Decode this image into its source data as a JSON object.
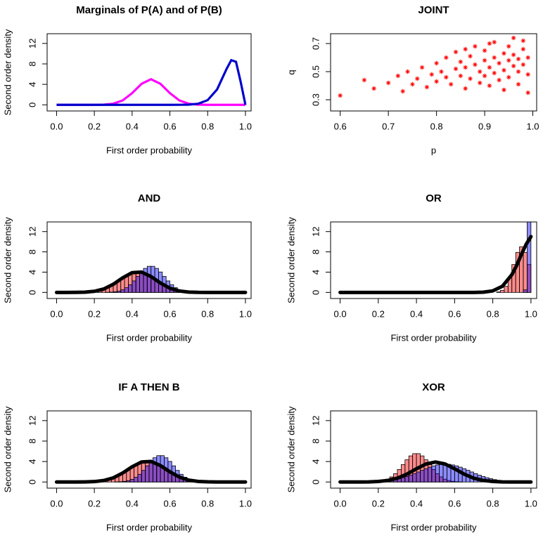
{
  "chart_data": [
    {
      "type": "line",
      "title": "Marginals of P(A) and of P(B)",
      "xlabel": "First order probability",
      "ylabel": "Second order density",
      "xlim": [
        -0.05,
        1.03
      ],
      "ylim": [
        -1.2,
        13.9
      ],
      "xticks": [
        {
          "value": 0,
          "label": "0.0"
        },
        0.2,
        0.4,
        0.6,
        0.8,
        {
          "value": 1,
          "label": "1.0"
        }
      ],
      "yticks": [
        0,
        4,
        8,
        12
      ],
      "x": [
        0,
        0.1,
        0.2,
        0.25,
        0.3,
        0.35,
        0.4,
        0.45,
        0.5,
        0.55,
        0.6,
        0.65,
        0.7,
        0.75,
        0.8,
        0.85,
        0.9,
        0.925,
        0.95,
        0.975,
        1
      ],
      "series": [
        {
          "color": "#ff00ff",
          "values": [
            0,
            0,
            0,
            0.04,
            0.22,
            0.86,
            2.29,
            4.11,
            5,
            4.11,
            2.29,
            0.86,
            0.22,
            0.04,
            0,
            0,
            0,
            0,
            0,
            0,
            0
          ]
        },
        {
          "color": "#0000cd",
          "values": [
            0,
            0,
            0,
            0,
            0,
            0,
            0,
            0,
            0,
            0,
            0,
            0.01,
            0.04,
            0.22,
            0.92,
            3.01,
            7.01,
            8.73,
            8.41,
            4.46,
            0
          ]
        }
      ]
    },
    {
      "type": "scatter",
      "title": "JOINT",
      "xlabel": "p",
      "ylabel": "q",
      "color": "#ff0000",
      "xlim": [
        0.58,
        1.008
      ],
      "ylim": [
        0.22,
        0.77
      ],
      "xticks": [
        0.6,
        0.7,
        0.8,
        0.9,
        {
          "value": 1,
          "label": "1.0"
        }
      ],
      "yticks": [
        0.3,
        0.5,
        0.7
      ],
      "x": [
        0.6,
        0.65,
        0.67,
        0.7,
        0.72,
        0.73,
        0.74,
        0.75,
        0.76,
        0.77,
        0.78,
        0.79,
        0.8,
        0.8,
        0.81,
        0.82,
        0.82,
        0.83,
        0.84,
        0.84,
        0.85,
        0.85,
        0.86,
        0.86,
        0.87,
        0.87,
        0.88,
        0.88,
        0.89,
        0.89,
        0.9,
        0.9,
        0.9,
        0.91,
        0.91,
        0.92,
        0.92,
        0.92,
        0.93,
        0.93,
        0.94,
        0.94,
        0.94,
        0.95,
        0.95,
        0.95,
        0.96,
        0.96,
        0.96,
        0.97,
        0.97,
        0.97,
        0.98,
        0.98,
        0.98,
        0.99,
        0.99,
        0.99,
        0.86,
        0.91
      ],
      "values": [
        0.33,
        0.44,
        0.38,
        0.42,
        0.47,
        0.36,
        0.5,
        0.41,
        0.45,
        0.53,
        0.39,
        0.48,
        0.43,
        0.56,
        0.5,
        0.46,
        0.6,
        0.41,
        0.52,
        0.64,
        0.47,
        0.57,
        0.38,
        0.53,
        0.61,
        0.45,
        0.55,
        0.68,
        0.5,
        0.42,
        0.58,
        0.47,
        0.65,
        0.53,
        0.4,
        0.6,
        0.49,
        0.71,
        0.56,
        0.44,
        0.63,
        0.51,
        0.37,
        0.58,
        0.68,
        0.46,
        0.54,
        0.62,
        0.74,
        0.5,
        0.59,
        0.41,
        0.66,
        0.55,
        0.72,
        0.48,
        0.6,
        0.35,
        0.66,
        0.7
      ]
    },
    {
      "type": "histogram",
      "title": "AND",
      "xlabel": "First order probability",
      "ylabel": "Second order density",
      "alpha": 0.45,
      "xlim": [
        -0.05,
        1.03
      ],
      "ylim": [
        -1.2,
        13.9
      ],
      "xticks": [
        {
          "value": 0,
          "label": "0.0"
        },
        0.2,
        0.4,
        0.6,
        0.8,
        {
          "value": 1,
          "label": "1.0"
        }
      ],
      "yticks": [
        0,
        4,
        8,
        12
      ],
      "bins": [
        0.1,
        0.12,
        0.14,
        0.16,
        0.18,
        0.2,
        0.22,
        0.24,
        0.26,
        0.28,
        0.3,
        0.32,
        0.34,
        0.36,
        0.38,
        0.4,
        0.42,
        0.44,
        0.46,
        0.48,
        0.5,
        0.52,
        0.54,
        0.56,
        0.58,
        0.6,
        0.62,
        0.64,
        0.66,
        0.68,
        0.7,
        0.72,
        0.74,
        0.76,
        0.78,
        0.8
      ],
      "series": [
        {
          "color": "#ff0000",
          "values": [
            0.02,
            0.04,
            0.08,
            0.14,
            0.22,
            0.36,
            0.54,
            0.79,
            1.11,
            1.5,
            1.95,
            2.43,
            2.9,
            3.34,
            3.69,
            3.92,
            4,
            3.92,
            3.69,
            3.34,
            2.9,
            2.43,
            1.95,
            1.5,
            1.11,
            0.79,
            0.54,
            0.36,
            0.22,
            0.14,
            0.08,
            0.04,
            0.02,
            0.01,
            0
          ]
        },
        {
          "color": "#0000ff",
          "values": [
            0,
            0,
            0,
            0,
            0,
            0,
            0,
            0,
            0.02,
            0.06,
            0.13,
            0.27,
            0.52,
            0.93,
            1.51,
            2.27,
            3.16,
            4.03,
            4.74,
            5.15,
            5.15,
            4.74,
            4.03,
            3.16,
            2.27,
            1.51,
            0.93,
            0.52,
            0.27,
            0.13,
            0.06,
            0.02,
            0,
            0,
            0
          ]
        }
      ],
      "density": {
        "color": "#000000",
        "x": [
          0,
          0.05,
          0.1,
          0.15,
          0.2,
          0.25,
          0.3,
          0.35,
          0.4,
          0.45,
          0.5,
          0.55,
          0.6,
          0.65,
          0.7,
          0.75,
          0.8,
          0.85,
          0.9,
          0.95,
          1
        ],
        "values": [
          0,
          0,
          0.01,
          0.05,
          0.22,
          0.68,
          1.6,
          2.88,
          3.9,
          4.01,
          3.13,
          1.85,
          0.83,
          0.28,
          0.07,
          0.01,
          0,
          0,
          0,
          0,
          0
        ]
      }
    },
    {
      "type": "histogram",
      "title": "OR",
      "xlabel": "First order probability",
      "ylabel": "Second order density",
      "alpha": 0.45,
      "xlim": [
        -0.05,
        1.03
      ],
      "ylim": [
        -1.2,
        13.9
      ],
      "xticks": [
        {
          "value": 0,
          "label": "0.0"
        },
        0.2,
        0.4,
        0.6,
        0.8,
        {
          "value": 1,
          "label": "1.0"
        }
      ],
      "yticks": [
        0,
        4,
        8,
        12
      ],
      "bins": [
        0.7,
        0.72,
        0.74,
        0.76,
        0.78,
        0.8,
        0.82,
        0.84,
        0.86,
        0.88,
        0.9,
        0.92,
        0.94,
        0.96,
        0.98,
        1
      ],
      "series": [
        {
          "color": "#ff0000",
          "values": [
            0,
            0,
            0,
            0,
            0,
            0,
            0.1,
            0.4,
            1.2,
            2.9,
            5.5,
            7.9,
            9,
            7.9,
            5.5
          ]
        },
        {
          "color": "#0000ff",
          "values": [
            0,
            0,
            0,
            0,
            0,
            0,
            0,
            0,
            0,
            0,
            0,
            0,
            0,
            0.5,
            15
          ]
        }
      ],
      "density": {
        "color": "#000000",
        "x": [
          0,
          0.1,
          0.2,
          0.3,
          0.4,
          0.5,
          0.6,
          0.7,
          0.75,
          0.8,
          0.85,
          0.9,
          0.925,
          0.95,
          0.975,
          1
        ],
        "values": [
          0,
          0,
          0,
          0,
          0,
          0,
          0,
          0,
          0.05,
          0.3,
          1.2,
          3.5,
          5.3,
          7.5,
          9.5,
          11
        ]
      }
    },
    {
      "type": "histogram",
      "title": "IF A THEN B",
      "xlabel": "First order probability",
      "ylabel": "Second order density",
      "alpha": 0.45,
      "xlim": [
        -0.05,
        1.03
      ],
      "ylim": [
        -1.2,
        13.9
      ],
      "xticks": [
        {
          "value": 0,
          "label": "0.0"
        },
        0.2,
        0.4,
        0.6,
        0.8,
        {
          "value": 1,
          "label": "1.0"
        }
      ],
      "yticks": [
        0,
        4,
        8,
        12
      ],
      "bins": [
        0.15,
        0.17,
        0.19,
        0.21,
        0.23,
        0.25,
        0.27,
        0.29,
        0.31,
        0.33,
        0.35,
        0.37,
        0.39,
        0.41,
        0.43,
        0.45,
        0.47,
        0.49,
        0.51,
        0.53,
        0.55,
        0.57,
        0.59,
        0.61,
        0.63,
        0.65,
        0.67,
        0.69,
        0.71,
        0.73,
        0.75,
        0.77,
        0.79,
        0.81,
        0.83,
        0.85
      ],
      "series": [
        {
          "color": "#ff0000",
          "values": [
            0.02,
            0.04,
            0.08,
            0.14,
            0.22,
            0.36,
            0.54,
            0.79,
            1.11,
            1.5,
            1.95,
            2.43,
            2.9,
            3.34,
            3.69,
            3.92,
            4,
            3.92,
            3.69,
            3.34,
            2.9,
            2.43,
            1.95,
            1.5,
            1.11,
            0.79,
            0.54,
            0.36,
            0.22,
            0.14,
            0.08,
            0.04,
            0.02,
            0.01,
            0
          ]
        },
        {
          "color": "#0000ff",
          "values": [
            0,
            0,
            0,
            0,
            0,
            0,
            0,
            0,
            0.02,
            0.06,
            0.13,
            0.27,
            0.52,
            0.93,
            1.51,
            2.27,
            3.16,
            4.03,
            4.74,
            5.15,
            5.15,
            4.74,
            4.03,
            3.16,
            2.27,
            1.51,
            0.93,
            0.52,
            0.27,
            0.13,
            0.06,
            0.02,
            0,
            0,
            0
          ]
        }
      ],
      "density": {
        "color": "#000000",
        "x": [
          0,
          0.05,
          0.1,
          0.15,
          0.2,
          0.25,
          0.3,
          0.35,
          0.4,
          0.45,
          0.5,
          0.55,
          0.6,
          0.65,
          0.7,
          0.75,
          0.8,
          0.85,
          0.9,
          0.95,
          1
        ],
        "values": [
          0,
          0,
          0,
          0.02,
          0.08,
          0.29,
          0.81,
          1.76,
          2.98,
          3.92,
          4.02,
          3.21,
          1.99,
          0.97,
          0.36,
          0.11,
          0.03,
          0,
          0,
          0,
          0
        ]
      }
    },
    {
      "type": "histogram",
      "title": "XOR",
      "xlabel": "First order probability",
      "ylabel": "Second order density",
      "alpha": 0.45,
      "xlim": [
        -0.05,
        1.03
      ],
      "ylim": [
        -1.2,
        13.9
      ],
      "xticks": [
        {
          "value": 0,
          "label": "0.0"
        },
        0.2,
        0.4,
        0.6,
        0.8,
        {
          "value": 1,
          "label": "1.0"
        }
      ],
      "yticks": [
        0,
        4,
        8,
        12
      ],
      "bins": [
        0.2,
        0.22,
        0.24,
        0.26,
        0.28,
        0.3,
        0.32,
        0.34,
        0.36,
        0.38,
        0.4,
        0.42,
        0.44,
        0.46,
        0.48,
        0.5,
        0.52,
        0.54,
        0.56,
        0.58,
        0.6,
        0.62,
        0.64,
        0.66,
        0.68,
        0.7,
        0.72,
        0.74,
        0.76,
        0.78,
        0.8,
        0.82,
        0.84,
        0.86,
        0.88,
        0.9
      ],
      "series": [
        {
          "color": "#ff0000",
          "values": [
            0.14,
            0.29,
            0.56,
            1,
            1.63,
            2.45,
            3.4,
            4.34,
            5.1,
            5.54,
            5.54,
            5.1,
            4.34,
            3.4,
            2.45,
            1.63,
            1,
            0.56,
            0.29,
            0.14,
            0.06,
            0.02,
            0,
            0,
            0,
            0,
            0,
            0,
            0,
            0,
            0,
            0,
            0,
            0,
            0
          ]
        },
        {
          "color": "#0000ff",
          "values": [
            0.11,
            0.17,
            0.24,
            0.34,
            0.47,
            0.64,
            0.84,
            1.07,
            1.34,
            1.64,
            1.96,
            2.29,
            2.6,
            2.9,
            3.15,
            3.34,
            3.46,
            3.5,
            3.46,
            3.34,
            3.15,
            2.9,
            2.6,
            2.29,
            1.96,
            1.64,
            1.34,
            1.07,
            0.84,
            0.64,
            0.47,
            0.34,
            0.24,
            0.17,
            0.11
          ]
        }
      ],
      "density": {
        "color": "#000000",
        "x": [
          0,
          0.05,
          0.1,
          0.15,
          0.2,
          0.25,
          0.3,
          0.35,
          0.4,
          0.45,
          0.5,
          0.55,
          0.6,
          0.65,
          0.7,
          0.75,
          0.8,
          0.85,
          0.9,
          0.95,
          1
        ],
        "values": [
          0,
          0,
          0,
          0.02,
          0.1,
          0.3,
          0.75,
          1.54,
          2.58,
          3.52,
          3.9,
          3.52,
          2.58,
          1.54,
          0.75,
          0.3,
          0.1,
          0.02,
          0,
          0,
          0
        ]
      }
    }
  ]
}
